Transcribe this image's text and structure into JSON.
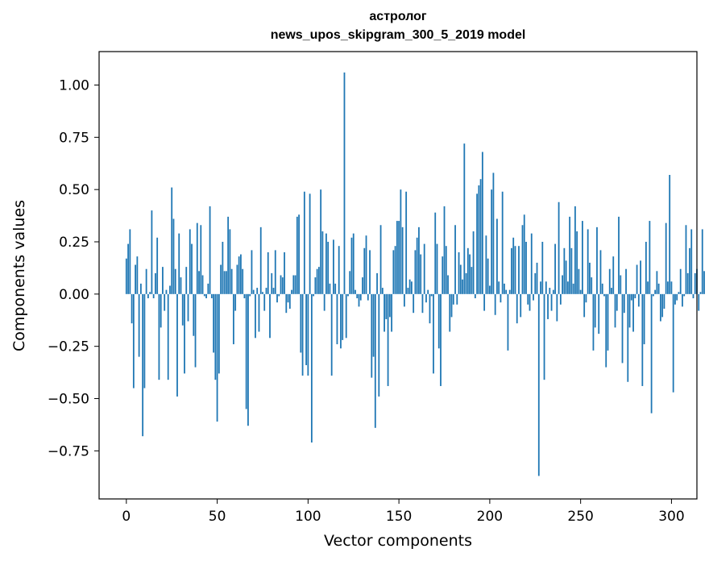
{
  "chart_data": {
    "type": "bar",
    "title": "астролог",
    "subtitle": "news_upos_skipgram_300_5_2019 model",
    "xlabel": "Vector components",
    "ylabel": "Components values",
    "xlim": [
      -15,
      314
    ],
    "ylim": [
      -0.98,
      1.16
    ],
    "xticks": [
      0,
      50,
      100,
      150,
      200,
      250,
      300
    ],
    "xtick_labels": [
      "0",
      "50",
      "100",
      "150",
      "200",
      "250",
      "300"
    ],
    "yticks": [
      -0.75,
      -0.5,
      -0.25,
      0.0,
      0.25,
      0.5,
      0.75,
      1.0
    ],
    "ytick_labels": [
      "−0.75",
      "−0.50",
      "−0.25",
      "0.00",
      "0.25",
      "0.50",
      "0.75",
      "1.00"
    ],
    "bar_color": "#1f77b4",
    "values": [
      0.17,
      0.24,
      0.31,
      -0.14,
      -0.45,
      0.14,
      0.18,
      -0.3,
      0.05,
      -0.68,
      -0.45,
      0.12,
      -0.02,
      0.01,
      0.4,
      -0.02,
      0.1,
      0.27,
      -0.41,
      -0.16,
      0.13,
      -0.08,
      0.02,
      -0.41,
      0.04,
      0.51,
      0.36,
      0.12,
      -0.49,
      0.29,
      0.08,
      -0.15,
      -0.38,
      0.13,
      -0.13,
      0.31,
      0.24,
      -0.2,
      -0.35,
      0.34,
      0.11,
      0.33,
      0.09,
      -0.01,
      -0.02,
      0.05,
      0.42,
      -0.02,
      -0.28,
      -0.41,
      -0.61,
      -0.38,
      0.14,
      0.25,
      0.11,
      0.11,
      0.37,
      0.31,
      0.12,
      -0.24,
      -0.08,
      0.14,
      0.18,
      0.19,
      0.12,
      -0.02,
      -0.55,
      -0.63,
      -0.01,
      0.21,
      0.02,
      -0.21,
      0.03,
      -0.18,
      0.32,
      0.01,
      -0.08,
      0.03,
      0.2,
      -0.21,
      0.1,
      0.03,
      0.21,
      -0.04,
      -0.01,
      0.09,
      0.08,
      0.2,
      -0.09,
      -0.04,
      -0.07,
      0.02,
      0.09,
      0.09,
      0.37,
      0.38,
      -0.28,
      -0.39,
      0.49,
      -0.34,
      -0.39,
      0.48,
      -0.71,
      -0.01,
      0.08,
      0.12,
      0.13,
      0.5,
      0.3,
      -0.08,
      0.29,
      0.25,
      0.05,
      -0.39,
      0.26,
      0.05,
      -0.24,
      0.23,
      -0.26,
      -0.22,
      1.06,
      -0.21,
      -0.01,
      0.11,
      0.27,
      0.29,
      0.02,
      -0.02,
      -0.06,
      -0.03,
      0.08,
      0.22,
      0.28,
      -0.03,
      0.21,
      -0.4,
      -0.3,
      -0.64,
      0.1,
      -0.49,
      0.33,
      0.03,
      -0.18,
      -0.12,
      -0.44,
      -0.11,
      -0.18,
      0.21,
      0.23,
      0.35,
      0.35,
      0.5,
      0.32,
      -0.06,
      0.49,
      0.03,
      0.07,
      0.06,
      -0.09,
      0.21,
      0.27,
      0.32,
      0.19,
      -0.09,
      0.24,
      -0.04,
      0.02,
      -0.14,
      -0.01,
      -0.38,
      0.39,
      0.24,
      -0.26,
      -0.44,
      0.18,
      0.42,
      0.23,
      0.09,
      -0.18,
      -0.11,
      -0.05,
      0.33,
      -0.05,
      0.2,
      0.14,
      0.07,
      0.72,
      0.1,
      0.22,
      0.19,
      0.13,
      0.3,
      -0.02,
      0.48,
      0.52,
      0.55,
      0.68,
      -0.08,
      0.28,
      0.17,
      0.04,
      0.5,
      0.58,
      -0.1,
      0.36,
      0.06,
      -0.04,
      0.49,
      0.05,
      0.02,
      -0.27,
      0.02,
      0.22,
      0.27,
      0.23,
      -0.14,
      0.23,
      -0.11,
      0.33,
      0.38,
      0.25,
      -0.05,
      -0.08,
      0.29,
      -0.03,
      0.1,
      0.15,
      -0.87,
      0.06,
      0.25,
      -0.41,
      0.06,
      -0.12,
      0.03,
      -0.08,
      0.02,
      0.24,
      -0.13,
      0.44,
      -0.05,
      0.09,
      0.22,
      0.16,
      0.06,
      0.37,
      0.22,
      0.05,
      0.42,
      0.3,
      0.12,
      0.02,
      0.35,
      -0.11,
      -0.04,
      0.31,
      0.15,
      0.08,
      -0.27,
      -0.16,
      0.32,
      -0.19,
      0.21,
      0.05,
      -0.01,
      -0.35,
      -0.27,
      0.12,
      0.03,
      0.18,
      -0.16,
      -0.08,
      0.37,
      0.09,
      -0.33,
      -0.09,
      0.12,
      -0.42,
      -0.16,
      -0.03,
      -0.18,
      -0.02,
      0.14,
      -0.06,
      0.16,
      -0.44,
      -0.24,
      0.25,
      0.06,
      0.35,
      -0.57,
      -0.01,
      0.02,
      0.11,
      0.05,
      -0.13,
      -0.11,
      -0.07,
      0.34,
      0.06,
      0.57,
      0.06,
      -0.47,
      -0.05,
      -0.03,
      0.01,
      0.12,
      -0.06,
      -0.01,
      0.33,
      0.1,
      0.22,
      0.31,
      -0.02,
      0.1,
      0.12,
      -0.08,
      0.01,
      0.31,
      0.11
    ]
  }
}
